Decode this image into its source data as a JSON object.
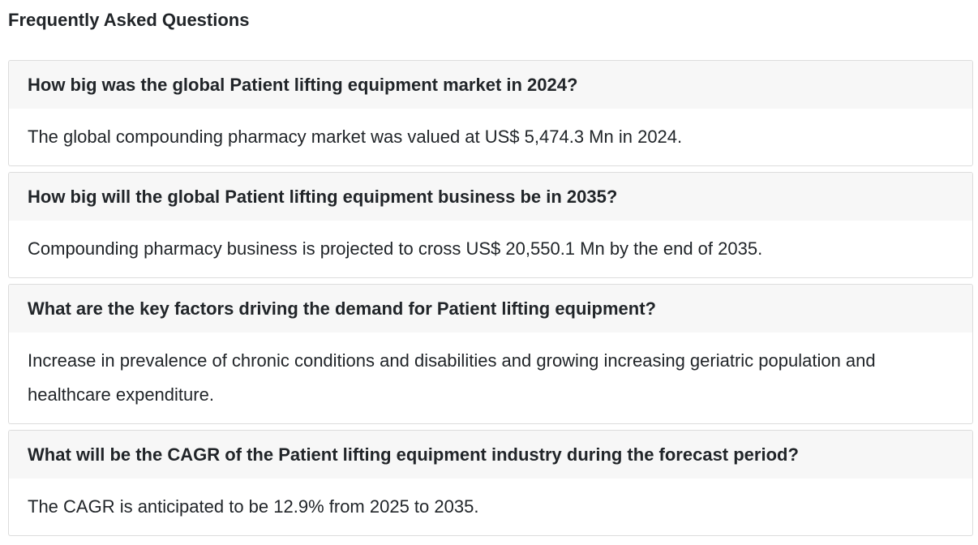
{
  "page": {
    "title": "Frequently Asked Questions"
  },
  "faqs": [
    {
      "question": "How big was the global Patient lifting equipment market in 2024?",
      "answer": "The global compounding pharmacy market was valued at US$ 5,474.3 Mn in 2024."
    },
    {
      "question": "How big will the global Patient lifting equipment business be in 2035?",
      "answer": "Compounding pharmacy business is projected to cross US$ 20,550.1 Mn by the end of 2035."
    },
    {
      "question": "What are the key factors driving the demand for Patient lifting equipment?",
      "answer": "Increase in prevalence of chronic conditions and disabilities and growing increasing geriatric population and healthcare expenditure."
    },
    {
      "question": "What will be the CAGR of the Patient lifting equipment industry during the forecast period?",
      "answer": "The CAGR is anticipated to be 12.9% from 2025 to 2035."
    }
  ]
}
